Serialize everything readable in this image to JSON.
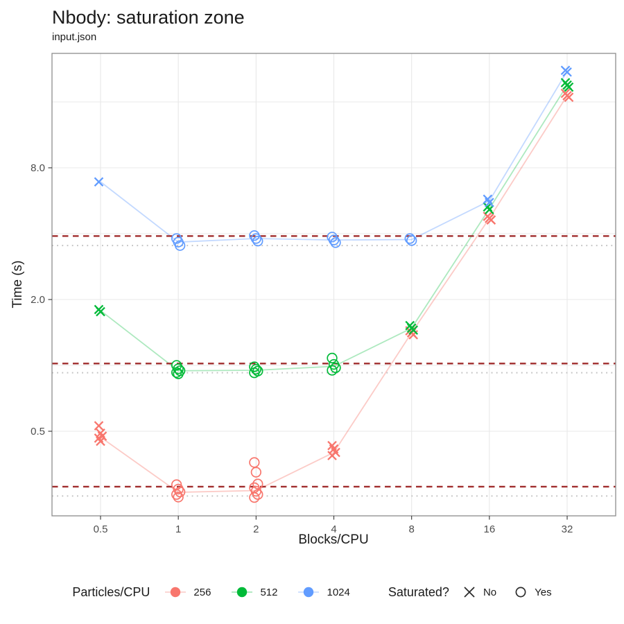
{
  "title": "Nbody: saturation zone",
  "subtitle": "input.json",
  "axes": {
    "x_label": "Blocks/CPU",
    "y_label": "Time (s)",
    "x_tick_labels": [
      "0.5",
      "1",
      "2",
      "4",
      "8",
      "16",
      "32"
    ],
    "y_tick_labels": [
      "8.0",
      "2.0",
      "0.5"
    ]
  },
  "legend": {
    "color_title": "Particles/CPU",
    "color_entries": [
      {
        "label": "256",
        "color": "#F8766D"
      },
      {
        "label": "512",
        "color": "#00BA38"
      },
      {
        "label": "1024",
        "color": "#619CFF"
      }
    ],
    "shape_title": "Saturated?",
    "shape_entries": [
      {
        "label": "No",
        "shape": "x"
      },
      {
        "label": "Yes",
        "shape": "circle"
      }
    ]
  },
  "chart_data": {
    "type": "scatter",
    "title": "Nbody: saturation zone",
    "subtitle": "input.json",
    "xlabel": "Blocks/CPU",
    "ylabel": "Time (s)",
    "x_scale": "log2",
    "y_scale": "log2",
    "x_ticks": [
      0.5,
      1,
      2,
      4,
      8,
      16,
      32
    ],
    "y_ticks": [
      8,
      2,
      0.5
    ],
    "y_gridlines": [
      0.5,
      1,
      2,
      4,
      8,
      16
    ],
    "grid": true,
    "panel_border": true,
    "colors": {
      "grid": "#E8E8E8",
      "panel_border": "#8C8C8C",
      "axis_text": "#4D4D4D",
      "threshold_dashed": "#A02C2C",
      "threshold_dotted": "#C2C2C2"
    },
    "series": [
      {
        "name": "256",
        "color": "#F8766D",
        "line_color": "rgba(248,118,109,0.38)",
        "threshold_dashed": 0.279,
        "threshold_dotted": 0.253,
        "line": [
          [
            0.5,
            0.47
          ],
          [
            1,
            0.263
          ],
          [
            2,
            0.268
          ],
          [
            4,
            0.4
          ],
          [
            8,
            1.41
          ],
          [
            16,
            4.7
          ],
          [
            32,
            17.1
          ]
        ],
        "points": [
          {
            "x": 0.5,
            "y": 0.53,
            "saturated": false
          },
          {
            "x": 0.5,
            "y": 0.49,
            "saturated": false
          },
          {
            "x": 0.5,
            "y": 0.475,
            "saturated": false
          },
          {
            "x": 0.5,
            "y": 0.465,
            "saturated": false
          },
          {
            "x": 0.5,
            "y": 0.45,
            "saturated": false
          },
          {
            "x": 1,
            "y": 0.285,
            "saturated": true
          },
          {
            "x": 1,
            "y": 0.272,
            "saturated": true
          },
          {
            "x": 1,
            "y": 0.264,
            "saturated": true
          },
          {
            "x": 1,
            "y": 0.257,
            "saturated": true
          },
          {
            "x": 1,
            "y": 0.25,
            "saturated": true
          },
          {
            "x": 2,
            "y": 0.36,
            "saturated": true
          },
          {
            "x": 2,
            "y": 0.325,
            "saturated": true
          },
          {
            "x": 2,
            "y": 0.287,
            "saturated": true
          },
          {
            "x": 2,
            "y": 0.276,
            "saturated": true
          },
          {
            "x": 2,
            "y": 0.266,
            "saturated": true
          },
          {
            "x": 2,
            "y": 0.257,
            "saturated": true
          },
          {
            "x": 2,
            "y": 0.249,
            "saturated": true
          },
          {
            "x": 4,
            "y": 0.43,
            "saturated": false
          },
          {
            "x": 4,
            "y": 0.415,
            "saturated": false
          },
          {
            "x": 4,
            "y": 0.4,
            "saturated": false
          },
          {
            "x": 4,
            "y": 0.387,
            "saturated": false
          },
          {
            "x": 8,
            "y": 1.44,
            "saturated": false
          },
          {
            "x": 8,
            "y": 1.41,
            "saturated": false
          },
          {
            "x": 8,
            "y": 1.38,
            "saturated": false
          },
          {
            "x": 16,
            "y": 4.8,
            "saturated": false
          },
          {
            "x": 16,
            "y": 4.7,
            "saturated": false
          },
          {
            "x": 16,
            "y": 4.62,
            "saturated": false
          },
          {
            "x": 32,
            "y": 17.5,
            "saturated": false
          },
          {
            "x": 32,
            "y": 17.1,
            "saturated": false
          },
          {
            "x": 32,
            "y": 16.8,
            "saturated": false
          }
        ]
      },
      {
        "name": "512",
        "color": "#00BA38",
        "line_color": "rgba(0,186,56,0.32)",
        "threshold_dashed": 1.02,
        "threshold_dotted": 0.925,
        "line": [
          [
            0.5,
            1.78
          ],
          [
            1,
            0.945
          ],
          [
            2,
            0.95
          ],
          [
            4,
            0.99
          ],
          [
            8,
            1.48
          ],
          [
            16,
            5.2
          ],
          [
            32,
            19.1
          ]
        ],
        "points": [
          {
            "x": 0.5,
            "y": 1.8,
            "saturated": false
          },
          {
            "x": 0.5,
            "y": 1.76,
            "saturated": false
          },
          {
            "x": 1,
            "y": 1.0,
            "saturated": true
          },
          {
            "x": 1,
            "y": 0.965,
            "saturated": true
          },
          {
            "x": 1,
            "y": 0.945,
            "saturated": true
          },
          {
            "x": 1,
            "y": 0.928,
            "saturated": true
          },
          {
            "x": 1,
            "y": 0.915,
            "saturated": true
          },
          {
            "x": 2,
            "y": 0.985,
            "saturated": true
          },
          {
            "x": 2,
            "y": 0.96,
            "saturated": true
          },
          {
            "x": 2,
            "y": 0.942,
            "saturated": true
          },
          {
            "x": 2,
            "y": 0.925,
            "saturated": true
          },
          {
            "x": 4,
            "y": 1.08,
            "saturated": true
          },
          {
            "x": 4,
            "y": 1.01,
            "saturated": true
          },
          {
            "x": 4,
            "y": 0.975,
            "saturated": true
          },
          {
            "x": 4,
            "y": 0.95,
            "saturated": true
          },
          {
            "x": 8,
            "y": 1.52,
            "saturated": false
          },
          {
            "x": 8,
            "y": 1.48,
            "saturated": false
          },
          {
            "x": 8,
            "y": 1.45,
            "saturated": false
          },
          {
            "x": 16,
            "y": 5.3,
            "saturated": false
          },
          {
            "x": 16,
            "y": 5.15,
            "saturated": false
          },
          {
            "x": 32,
            "y": 19.6,
            "saturated": false
          },
          {
            "x": 32,
            "y": 19.1,
            "saturated": false
          },
          {
            "x": 32,
            "y": 18.7,
            "saturated": false
          }
        ]
      },
      {
        "name": "1024",
        "color": "#619CFF",
        "line_color": "rgba(97,156,255,0.38)",
        "threshold_dashed": 3.9,
        "threshold_dotted": 3.53,
        "line": [
          [
            0.5,
            6.9
          ],
          [
            1,
            3.66
          ],
          [
            2,
            3.8
          ],
          [
            4,
            3.74
          ],
          [
            8,
            3.76
          ],
          [
            16,
            5.65
          ],
          [
            32,
            22.1
          ]
        ],
        "points": [
          {
            "x": 0.5,
            "y": 6.9,
            "saturated": false
          },
          {
            "x": 1,
            "y": 3.8,
            "saturated": true
          },
          {
            "x": 1,
            "y": 3.66,
            "saturated": true
          },
          {
            "x": 1,
            "y": 3.53,
            "saturated": true
          },
          {
            "x": 2,
            "y": 3.92,
            "saturated": true
          },
          {
            "x": 2,
            "y": 3.8,
            "saturated": true
          },
          {
            "x": 2,
            "y": 3.7,
            "saturated": true
          },
          {
            "x": 4,
            "y": 3.86,
            "saturated": true
          },
          {
            "x": 4,
            "y": 3.74,
            "saturated": true
          },
          {
            "x": 4,
            "y": 3.64,
            "saturated": true
          },
          {
            "x": 8,
            "y": 3.8,
            "saturated": true
          },
          {
            "x": 8,
            "y": 3.72,
            "saturated": true
          },
          {
            "x": 16,
            "y": 5.75,
            "saturated": false
          },
          {
            "x": 16,
            "y": 5.55,
            "saturated": false
          },
          {
            "x": 32,
            "y": 22.3,
            "saturated": false
          },
          {
            "x": 32,
            "y": 21.9,
            "saturated": false
          }
        ]
      }
    ]
  }
}
